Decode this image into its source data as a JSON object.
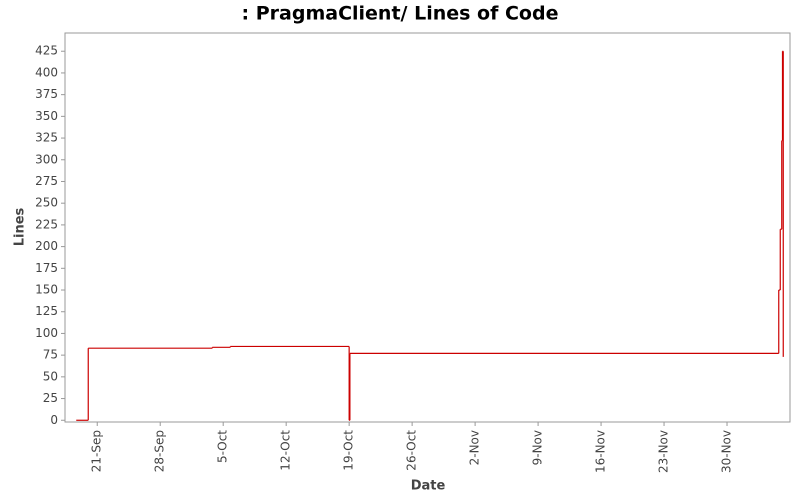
{
  "chart_data": {
    "type": "step",
    "title": ": PragmaClient/ Lines of Code",
    "x_label": "Date",
    "y_label": "Lines",
    "series": [
      {
        "name": "Lines",
        "color": "#cc0000",
        "x": [
          "09-18 16:00",
          "09-20 00:00",
          "10-03 19:00",
          "10-05 19:00",
          "10-19 00:00",
          "10-19 02:00",
          "12-05 18:00",
          "12-05 22:00",
          "12-06 02:00",
          "12-06 04:00",
          "12-06 06:00"
        ],
        "values": [
          0,
          83,
          84,
          85,
          0,
          77,
          150,
          220,
          322,
          425,
          73
        ]
      }
    ],
    "xlim": [
      "09-17 10:00",
      "12-07 00:00"
    ],
    "xticks": [
      {
        "value": "09-21 00:00",
        "label": "21-Sep"
      },
      {
        "value": "09-28 00:00",
        "label": "28-Sep"
      },
      {
        "value": "10-05 00:00",
        "label": "5-Oct"
      },
      {
        "value": "10-12 00:00",
        "label": "12-Oct"
      },
      {
        "value": "10-19 00:00",
        "label": "19-Oct"
      },
      {
        "value": "10-26 00:00",
        "label": "26-Oct"
      },
      {
        "value": "11-02 00:00",
        "label": "2-Nov"
      },
      {
        "value": "11-09 00:00",
        "label": "9-Nov"
      },
      {
        "value": "11-16 00:00",
        "label": "16-Nov"
      },
      {
        "value": "11-23 00:00",
        "label": "23-Nov"
      },
      {
        "value": "11-30 00:00",
        "label": "30-Nov"
      }
    ],
    "ylim": [
      -2,
      446
    ],
    "yticks": [
      0,
      25,
      50,
      75,
      100,
      125,
      150,
      175,
      200,
      225,
      250,
      275,
      300,
      325,
      350,
      375,
      400,
      425
    ],
    "grid": false
  }
}
